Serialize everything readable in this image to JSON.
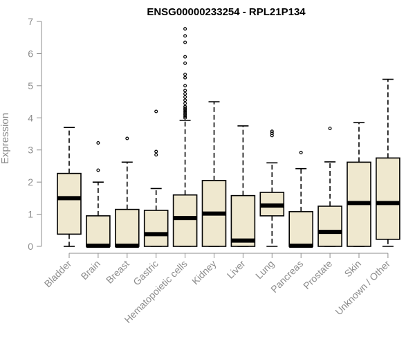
{
  "colors": {
    "box_fill": "#efe8cf",
    "box_stroke": "#000000",
    "median": "#000000",
    "axis": "#8c8c8c",
    "tick_text": "#8c8c8c",
    "title": "#000000"
  },
  "chart_data": {
    "type": "boxplot",
    "title": "ENSG00000233254 - RPL21P134",
    "xlabel": "",
    "ylabel": "Expression",
    "ylim": [
      0,
      7
    ],
    "yticks": [
      0,
      1,
      2,
      3,
      4,
      5,
      6,
      7
    ],
    "grid": false,
    "categories": [
      "Bladder",
      "Brain",
      "Breast",
      "Gastric",
      "Hematopoietic cells",
      "Kidney",
      "Liver",
      "Lung",
      "Pancreas",
      "Prostate",
      "Skin",
      "Unknown / Other"
    ],
    "boxes": [
      {
        "min": 0,
        "q1": 0.38,
        "median": 1.5,
        "q3": 2.27,
        "max": 3.7,
        "outliers": []
      },
      {
        "min": 0,
        "q1": 0,
        "median": 0.02,
        "q3": 0.95,
        "max": 2.0,
        "outliers": [
          2.37,
          3.22
        ]
      },
      {
        "min": 0,
        "q1": 0,
        "median": 0.02,
        "q3": 1.15,
        "max": 2.62,
        "outliers": [
          3.36
        ]
      },
      {
        "min": 0,
        "q1": 0,
        "median": 0.38,
        "q3": 1.12,
        "max": 1.8,
        "outliers": [
          2.85,
          2.95,
          4.2
        ]
      },
      {
        "min": 0,
        "q1": 0,
        "median": 0.88,
        "q3": 1.6,
        "max": 3.92,
        "outliers": [
          4.0,
          4.05,
          4.1,
          4.15,
          4.2,
          4.25,
          4.3,
          4.35,
          4.45,
          4.55,
          4.65,
          4.75,
          4.85,
          5.0,
          5.25,
          5.35,
          5.7,
          5.9,
          6.35,
          6.55,
          6.77
        ]
      },
      {
        "min": 0,
        "q1": 0,
        "median": 1.02,
        "q3": 2.05,
        "max": 4.5,
        "outliers": []
      },
      {
        "min": 0,
        "q1": 0,
        "median": 0.18,
        "q3": 1.58,
        "max": 3.75,
        "outliers": []
      },
      {
        "min": 0,
        "q1": 0.95,
        "median": 1.27,
        "q3": 1.68,
        "max": 2.6,
        "outliers": [
          3.45,
          3.52,
          3.58
        ]
      },
      {
        "min": 0,
        "q1": 0,
        "median": 0.02,
        "q3": 1.08,
        "max": 2.42,
        "outliers": [
          2.92
        ]
      },
      {
        "min": 0,
        "q1": 0,
        "median": 0.45,
        "q3": 1.25,
        "max": 2.63,
        "outliers": [
          3.67
        ]
      },
      {
        "min": 0,
        "q1": 0,
        "median": 1.35,
        "q3": 2.62,
        "max": 3.85,
        "outliers": []
      },
      {
        "min": 0,
        "q1": 0.22,
        "median": 1.35,
        "q3": 2.75,
        "max": 5.2,
        "outliers": []
      }
    ]
  }
}
